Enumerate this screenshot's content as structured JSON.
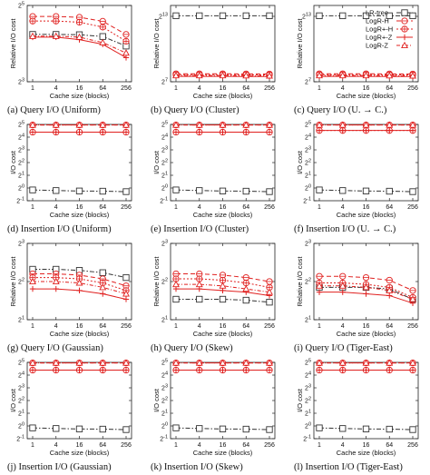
{
  "colors": {
    "lr": "#333333",
    "logr": "#e0201f"
  },
  "legend": {
    "placement": "top-right",
    "entries": [
      "LR-tree",
      "LogR-H",
      "LogR+-H",
      "LogR+-Z",
      "LogR-Z"
    ]
  },
  "chart_data": [
    {
      "type": "line",
      "caption": "(a) Query I/O (Uniform)",
      "xlabel": "Cache size (blocks)",
      "ylabel": "Relative I/O cost",
      "x": [
        1,
        4,
        16,
        64,
        256
      ],
      "xticks": [
        "1",
        "4",
        "16",
        "64",
        "256"
      ],
      "yscale": "log2",
      "ylim": [
        8,
        32
      ],
      "yticks": [
        {
          "v": 8,
          "t": "2^3"
        },
        {
          "v": 32,
          "t": "2^5"
        }
      ],
      "series": [
        {
          "name": "LR-tree",
          "values": [
            18.9,
            18.9,
            18.8,
            18.2,
            15.3
          ]
        },
        {
          "name": "LogR-H",
          "values": [
            26.2,
            26.2,
            25.8,
            24.0,
            18.9
          ]
        },
        {
          "name": "LogR+-H",
          "values": [
            24.1,
            24.1,
            23.6,
            21.6,
            16.7
          ]
        },
        {
          "name": "LogR+-Z",
          "values": [
            18.0,
            18.0,
            17.2,
            15.8,
            12.4
          ]
        },
        {
          "name": "LogR-Z",
          "values": [
            18.3,
            18.3,
            18.0,
            16.3,
            13.5
          ]
        }
      ]
    },
    {
      "type": "line",
      "caption": "(b) Query I/O (Cluster)",
      "xlabel": "Cache size (blocks)",
      "ylabel": "Relative I/O cost",
      "x": [
        1,
        4,
        16,
        64,
        256
      ],
      "xticks": [
        "1",
        "4",
        "16",
        "64",
        "256"
      ],
      "yscale": "log2",
      "ylim": [
        128,
        16384
      ],
      "yticks": [
        {
          "v": 128,
          "t": "2^7"
        },
        {
          "v": 8192,
          "t": "2^13"
        }
      ],
      "series": [
        {
          "name": "LR-tree",
          "values": [
            8500,
            8500,
            8500,
            8500,
            8500
          ]
        },
        {
          "name": "LogR-H",
          "values": [
            212,
            212,
            212,
            211,
            209
          ]
        },
        {
          "name": "LogR+-H",
          "values": [
            200,
            200,
            200,
            199,
            197
          ]
        },
        {
          "name": "LogR+-Z",
          "values": [
            180,
            180,
            180,
            179,
            178
          ]
        },
        {
          "name": "LogR-Z",
          "values": [
            190,
            190,
            190,
            189,
            187
          ]
        }
      ]
    },
    {
      "type": "line",
      "caption": "(c) Query I/O (U. → C.)",
      "xlabel": "Cache size (blocks)",
      "ylabel": "Relative I/O cost",
      "x": [
        1,
        4,
        16,
        64,
        256
      ],
      "xticks": [
        "1",
        "4",
        "16",
        "64",
        "256"
      ],
      "yscale": "log2",
      "ylim": [
        128,
        16384
      ],
      "yticks": [
        {
          "v": 128,
          "t": "2^7"
        },
        {
          "v": 8192,
          "t": "2^13"
        }
      ],
      "series": [
        {
          "name": "LR-tree",
          "values": [
            8500,
            8500,
            8500,
            8500,
            8500
          ]
        },
        {
          "name": "LogR-H",
          "values": [
            212,
            212,
            212,
            211,
            209
          ]
        },
        {
          "name": "LogR+-H",
          "values": [
            200,
            200,
            200,
            199,
            197
          ]
        },
        {
          "name": "LogR+-Z",
          "values": [
            180,
            180,
            180,
            179,
            178
          ]
        },
        {
          "name": "LogR-Z",
          "values": [
            190,
            190,
            190,
            189,
            187
          ]
        }
      ]
    },
    {
      "type": "line",
      "caption": "(d) Insertion I/O (Uniform)",
      "xlabel": "Cache size (blocks)",
      "ylabel": "I/O cost",
      "x": [
        1,
        4,
        16,
        64,
        256
      ],
      "xticks": [
        "1",
        "4",
        "16",
        "64",
        "256"
      ],
      "yscale": "log2",
      "ylim": [
        0.5,
        32
      ],
      "yticks": [
        {
          "v": 0.5,
          "t": "2^-1"
        },
        {
          "v": 1,
          "t": "2^0"
        },
        {
          "v": 2,
          "t": "2^1"
        },
        {
          "v": 4,
          "t": "2^2"
        },
        {
          "v": 8,
          "t": "2^3"
        },
        {
          "v": 16,
          "t": "2^4"
        },
        {
          "v": 32,
          "t": "2^5"
        }
      ],
      "series": [
        {
          "name": "LR-tree",
          "values": [
            0.9,
            0.87,
            0.85,
            0.84,
            0.82
          ]
        },
        {
          "name": "LogR-H",
          "values": [
            31,
            31,
            31,
            31,
            31
          ]
        },
        {
          "name": "LogR+-H",
          "values": [
            21,
            21,
            21,
            21,
            21
          ]
        },
        {
          "name": "LogR+-Z",
          "values": [
            21,
            21,
            21,
            21,
            21
          ]
        },
        {
          "name": "LogR-Z",
          "values": [
            31,
            31,
            31,
            31,
            31
          ]
        }
      ]
    },
    {
      "type": "line",
      "caption": "(e) Insertion I/O (Cluster)",
      "xlabel": "Cache size (blocks)",
      "ylabel": "I/O cost",
      "x": [
        1,
        4,
        16,
        64,
        256
      ],
      "xticks": [
        "1",
        "4",
        "16",
        "64",
        "256"
      ],
      "yscale": "log2",
      "ylim": [
        0.5,
        32
      ],
      "yticks": [
        {
          "v": 0.5,
          "t": "2^-1"
        },
        {
          "v": 1,
          "t": "2^0"
        },
        {
          "v": 2,
          "t": "2^1"
        },
        {
          "v": 4,
          "t": "2^2"
        },
        {
          "v": 8,
          "t": "2^3"
        },
        {
          "v": 16,
          "t": "2^4"
        },
        {
          "v": 32,
          "t": "2^5"
        }
      ],
      "series": [
        {
          "name": "LR-tree",
          "values": [
            0.9,
            0.87,
            0.85,
            0.84,
            0.82
          ]
        },
        {
          "name": "LogR-H",
          "values": [
            31,
            31,
            31,
            31,
            31
          ]
        },
        {
          "name": "LogR+-H",
          "values": [
            21,
            21,
            21,
            21,
            21
          ]
        },
        {
          "name": "LogR+-Z",
          "values": [
            21,
            21,
            21,
            21,
            21
          ]
        },
        {
          "name": "LogR-Z",
          "values": [
            31,
            31,
            31,
            31,
            31
          ]
        }
      ]
    },
    {
      "type": "line",
      "caption": "(f) Insertion I/O (U. → C.)",
      "xlabel": "Cache size (blocks)",
      "ylabel": "I/O cost",
      "x": [
        1,
        4,
        16,
        64,
        256
      ],
      "xticks": [
        "1",
        "4",
        "16",
        "64",
        "256"
      ],
      "yscale": "log2",
      "ylim": [
        0.5,
        32
      ],
      "yticks": [
        {
          "v": 0.5,
          "t": "2^-1"
        },
        {
          "v": 1,
          "t": "2^0"
        },
        {
          "v": 2,
          "t": "2^1"
        },
        {
          "v": 4,
          "t": "2^2"
        },
        {
          "v": 8,
          "t": "2^3"
        },
        {
          "v": 16,
          "t": "2^4"
        },
        {
          "v": 32,
          "t": "2^5"
        }
      ],
      "series": [
        {
          "name": "LR-tree",
          "values": [
            0.9,
            0.87,
            0.85,
            0.84,
            0.82
          ]
        },
        {
          "name": "LogR-H",
          "values": [
            31,
            31,
            31,
            31,
            31
          ]
        },
        {
          "name": "LogR+-H",
          "values": [
            23,
            23,
            23,
            23,
            23
          ]
        },
        {
          "name": "LogR+-Z",
          "values": [
            23,
            23,
            23,
            23,
            23
          ]
        },
        {
          "name": "LogR-Z",
          "values": [
            31,
            31,
            31,
            31,
            31
          ]
        }
      ]
    },
    {
      "type": "line",
      "caption": "(g) Query I/O (Gaussian)",
      "xlabel": "Cache size (blocks)",
      "ylabel": "Relative I/O cost",
      "x": [
        1,
        4,
        16,
        64,
        256
      ],
      "xticks": [
        "1",
        "4",
        "16",
        "64",
        "256"
      ],
      "yscale": "log2",
      "ylim": [
        2,
        8
      ],
      "yticks": [
        {
          "v": 2,
          "t": "2^1"
        },
        {
          "v": 4,
          "t": "2^2"
        },
        {
          "v": 8,
          "t": "2^3"
        }
      ],
      "series": [
        {
          "name": "LR-tree",
          "values": [
            5.0,
            5.0,
            4.9,
            4.7,
            4.3
          ]
        },
        {
          "name": "LogR-H",
          "values": [
            4.6,
            4.6,
            4.5,
            4.2,
            3.7
          ]
        },
        {
          "name": "LogR+-H",
          "values": [
            4.3,
            4.3,
            4.2,
            3.9,
            3.4
          ]
        },
        {
          "name": "LogR+-Z",
          "values": [
            3.5,
            3.5,
            3.4,
            3.2,
            2.9
          ]
        },
        {
          "name": "LogR-Z",
          "values": [
            4.0,
            4.0,
            3.9,
            3.6,
            3.2
          ]
        }
      ]
    },
    {
      "type": "line",
      "caption": "(h) Query I/O (Skew)",
      "xlabel": "Cache size (blocks)",
      "ylabel": "Relative I/O cost",
      "x": [
        1,
        4,
        16,
        64,
        256
      ],
      "xticks": [
        "1",
        "4",
        "16",
        "64",
        "256"
      ],
      "yscale": "log2",
      "ylim": [
        2,
        8
      ],
      "yticks": [
        {
          "v": 2,
          "t": "2^1"
        },
        {
          "v": 4,
          "t": "2^2"
        },
        {
          "v": 8,
          "t": "2^3"
        }
      ],
      "series": [
        {
          "name": "LR-tree",
          "values": [
            2.9,
            2.9,
            2.9,
            2.85,
            2.75
          ]
        },
        {
          "name": "LogR-H",
          "values": [
            4.6,
            4.6,
            4.5,
            4.3,
            4.0
          ]
        },
        {
          "name": "LogR+-H",
          "values": [
            4.2,
            4.2,
            4.1,
            3.9,
            3.6
          ]
        },
        {
          "name": "LogR+-Z",
          "values": [
            3.5,
            3.5,
            3.4,
            3.3,
            3.1
          ]
        },
        {
          "name": "LogR-Z",
          "values": [
            3.8,
            3.8,
            3.7,
            3.5,
            3.3
          ]
        }
      ]
    },
    {
      "type": "line",
      "caption": "(i) Query I/O (Tiger-East)",
      "xlabel": "Cache size (blocks)",
      "ylabel": "Relative I/O cost",
      "x": [
        1,
        4,
        16,
        64,
        256
      ],
      "xticks": [
        "1",
        "4",
        "16",
        "64",
        "256"
      ],
      "yscale": "log2",
      "ylim": [
        2,
        8
      ],
      "yticks": [
        {
          "v": 2,
          "t": "2^1"
        },
        {
          "v": 4,
          "t": "2^2"
        },
        {
          "v": 8,
          "t": "2^3"
        }
      ],
      "series": [
        {
          "name": "LR-tree",
          "values": [
            3.6,
            3.6,
            3.6,
            3.5,
            2.9
          ]
        },
        {
          "name": "LogR-H",
          "values": [
            4.4,
            4.4,
            4.3,
            4.1,
            3.4
          ]
        },
        {
          "name": "LogR+-H",
          "values": [
            3.9,
            3.9,
            3.8,
            3.6,
            3.0
          ]
        },
        {
          "name": "LogR+-Z",
          "values": [
            3.3,
            3.3,
            3.2,
            3.1,
            2.7
          ]
        },
        {
          "name": "LogR-Z",
          "values": [
            3.7,
            3.7,
            3.6,
            3.4,
            2.9
          ]
        }
      ]
    },
    {
      "type": "line",
      "caption": "(j) Insertion I/O (Gaussian)",
      "xlabel": "Cache size (blocks)",
      "ylabel": "I/O cost",
      "x": [
        1,
        4,
        16,
        64,
        256
      ],
      "xticks": [
        "1",
        "4",
        "16",
        "64",
        "256"
      ],
      "yscale": "log2",
      "ylim": [
        0.5,
        32
      ],
      "yticks": [
        {
          "v": 0.5,
          "t": "2^-1"
        },
        {
          "v": 1,
          "t": "2^0"
        },
        {
          "v": 2,
          "t": "2^1"
        },
        {
          "v": 4,
          "t": "2^2"
        },
        {
          "v": 8,
          "t": "2^3"
        },
        {
          "v": 16,
          "t": "2^4"
        },
        {
          "v": 32,
          "t": "2^5"
        }
      ],
      "series": [
        {
          "name": "LR-tree",
          "values": [
            0.9,
            0.87,
            0.85,
            0.84,
            0.82
          ]
        },
        {
          "name": "LogR-H",
          "values": [
            31,
            31,
            31,
            31,
            31
          ]
        },
        {
          "name": "LogR+-H",
          "values": [
            21,
            21,
            21,
            21,
            21
          ]
        },
        {
          "name": "LogR+-Z",
          "values": [
            21,
            21,
            21,
            21,
            21
          ]
        },
        {
          "name": "LogR-Z",
          "values": [
            31,
            31,
            31,
            31,
            31
          ]
        }
      ]
    },
    {
      "type": "line",
      "caption": "(k) Insertion I/O (Skew)",
      "xlabel": "Cache size (blocks)",
      "ylabel": "I/O cost",
      "x": [
        1,
        4,
        16,
        64,
        256
      ],
      "xticks": [
        "1",
        "4",
        "16",
        "64",
        "256"
      ],
      "yscale": "log2",
      "ylim": [
        0.5,
        32
      ],
      "yticks": [
        {
          "v": 0.5,
          "t": "2^-1"
        },
        {
          "v": 1,
          "t": "2^0"
        },
        {
          "v": 2,
          "t": "2^1"
        },
        {
          "v": 4,
          "t": "2^2"
        },
        {
          "v": 8,
          "t": "2^3"
        },
        {
          "v": 16,
          "t": "2^4"
        },
        {
          "v": 32,
          "t": "2^5"
        }
      ],
      "series": [
        {
          "name": "LR-tree",
          "values": [
            0.9,
            0.87,
            0.85,
            0.84,
            0.82
          ]
        },
        {
          "name": "LogR-H",
          "values": [
            31,
            31,
            31,
            31,
            31
          ]
        },
        {
          "name": "LogR+-H",
          "values": [
            21,
            21,
            21,
            21,
            21
          ]
        },
        {
          "name": "LogR+-Z",
          "values": [
            21,
            21,
            21,
            21,
            21
          ]
        },
        {
          "name": "LogR-Z",
          "values": [
            31,
            31,
            31,
            31,
            31
          ]
        }
      ]
    },
    {
      "type": "line",
      "caption": "(l) Insertion I/O (Tiger-East)",
      "xlabel": "Cache size (blocks)",
      "ylabel": "I/O cost",
      "x": [
        1,
        4,
        16,
        64,
        256
      ],
      "xticks": [
        "1",
        "4",
        "16",
        "64",
        "256"
      ],
      "yscale": "log2",
      "ylim": [
        0.5,
        32
      ],
      "yticks": [
        {
          "v": 0.5,
          "t": "2^-1"
        },
        {
          "v": 1,
          "t": "2^0"
        },
        {
          "v": 2,
          "t": "2^1"
        },
        {
          "v": 4,
          "t": "2^2"
        },
        {
          "v": 8,
          "t": "2^3"
        },
        {
          "v": 16,
          "t": "2^4"
        },
        {
          "v": 32,
          "t": "2^5"
        }
      ],
      "series": [
        {
          "name": "LR-tree",
          "values": [
            0.9,
            0.87,
            0.85,
            0.84,
            0.82
          ]
        },
        {
          "name": "LogR-H",
          "values": [
            31,
            31,
            31,
            31,
            31
          ]
        },
        {
          "name": "LogR+-H",
          "values": [
            21,
            21,
            21,
            21,
            21
          ]
        },
        {
          "name": "LogR+-Z",
          "values": [
            21,
            21,
            21,
            21,
            21
          ]
        },
        {
          "name": "LogR-Z",
          "values": [
            31,
            31,
            31,
            31,
            31
          ]
        }
      ]
    }
  ]
}
